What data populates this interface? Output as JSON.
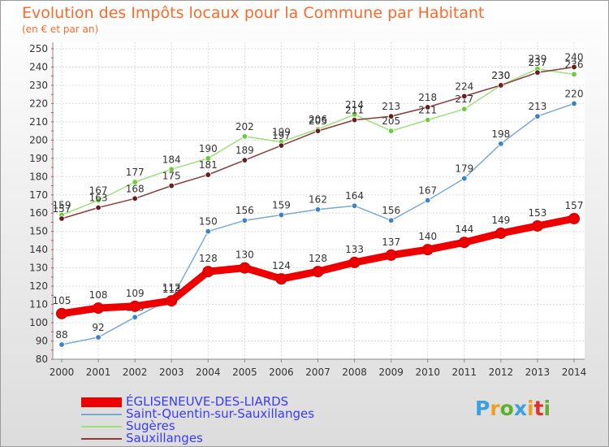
{
  "title": "Evolution des Impôts locaux pour la Commune par Habitant",
  "subtitle": "(en € et par an)",
  "logo": {
    "text": "Proxiti",
    "letters": [
      {
        "ch": "P",
        "color": "#3aa0e0"
      },
      {
        "ch": "r",
        "color": "#f0a020"
      },
      {
        "ch": "o",
        "color": "#60b030"
      },
      {
        "ch": "x",
        "color": "#3aa0e0"
      },
      {
        "ch": "i",
        "color": "#f0a020"
      },
      {
        "ch": "t",
        "color": "#e03030"
      },
      {
        "ch": "i",
        "color": "#60b030"
      }
    ]
  },
  "chart_data": {
    "type": "line",
    "title": "Evolution des Impôts locaux pour la Commune par Habitant",
    "ylabel": "(en € et par an)",
    "xlabel": "",
    "x": [
      2000,
      2001,
      2002,
      2003,
      2004,
      2005,
      2006,
      2007,
      2008,
      2009,
      2010,
      2011,
      2012,
      2013,
      2014
    ],
    "ylim": [
      80,
      250
    ],
    "yticks": [
      80,
      90,
      100,
      110,
      120,
      130,
      140,
      150,
      160,
      170,
      180,
      190,
      200,
      210,
      220,
      230,
      240,
      250
    ],
    "grid": true,
    "legend_position": "bottom-left",
    "series": [
      {
        "name": "ÉGLISENEUVE-DES-LIARDS",
        "color": "#ee0000",
        "marker_color": "#ee0000",
        "highlight": true,
        "values": [
          105,
          108,
          109,
          112,
          128,
          130,
          124,
          128,
          133,
          137,
          140,
          144,
          149,
          153,
          157
        ]
      },
      {
        "name": "Saint-Quentin-sur-Sauxillanges",
        "color": "#78aad8",
        "marker_color": "#3c82c8",
        "highlight": false,
        "values": [
          88,
          92,
          103,
          113,
          150,
          156,
          159,
          162,
          164,
          156,
          167,
          179,
          198,
          213,
          220
        ]
      },
      {
        "name": "Sugères",
        "color": "#9ee07a",
        "marker_color": "#6ccc3c",
        "highlight": false,
        "values": [
          159,
          167,
          177,
          184,
          190,
          202,
          199,
          206,
          214,
          205,
          211,
          217,
          230,
          239,
          236
        ]
      },
      {
        "name": "Sauxillanges",
        "color": "#8a3c3c",
        "marker_color": "#641e1e",
        "highlight": false,
        "values": [
          157,
          163,
          168,
          175,
          181,
          189,
          197,
          205,
          211,
          213,
          218,
          224,
          230,
          237,
          240
        ]
      }
    ]
  }
}
